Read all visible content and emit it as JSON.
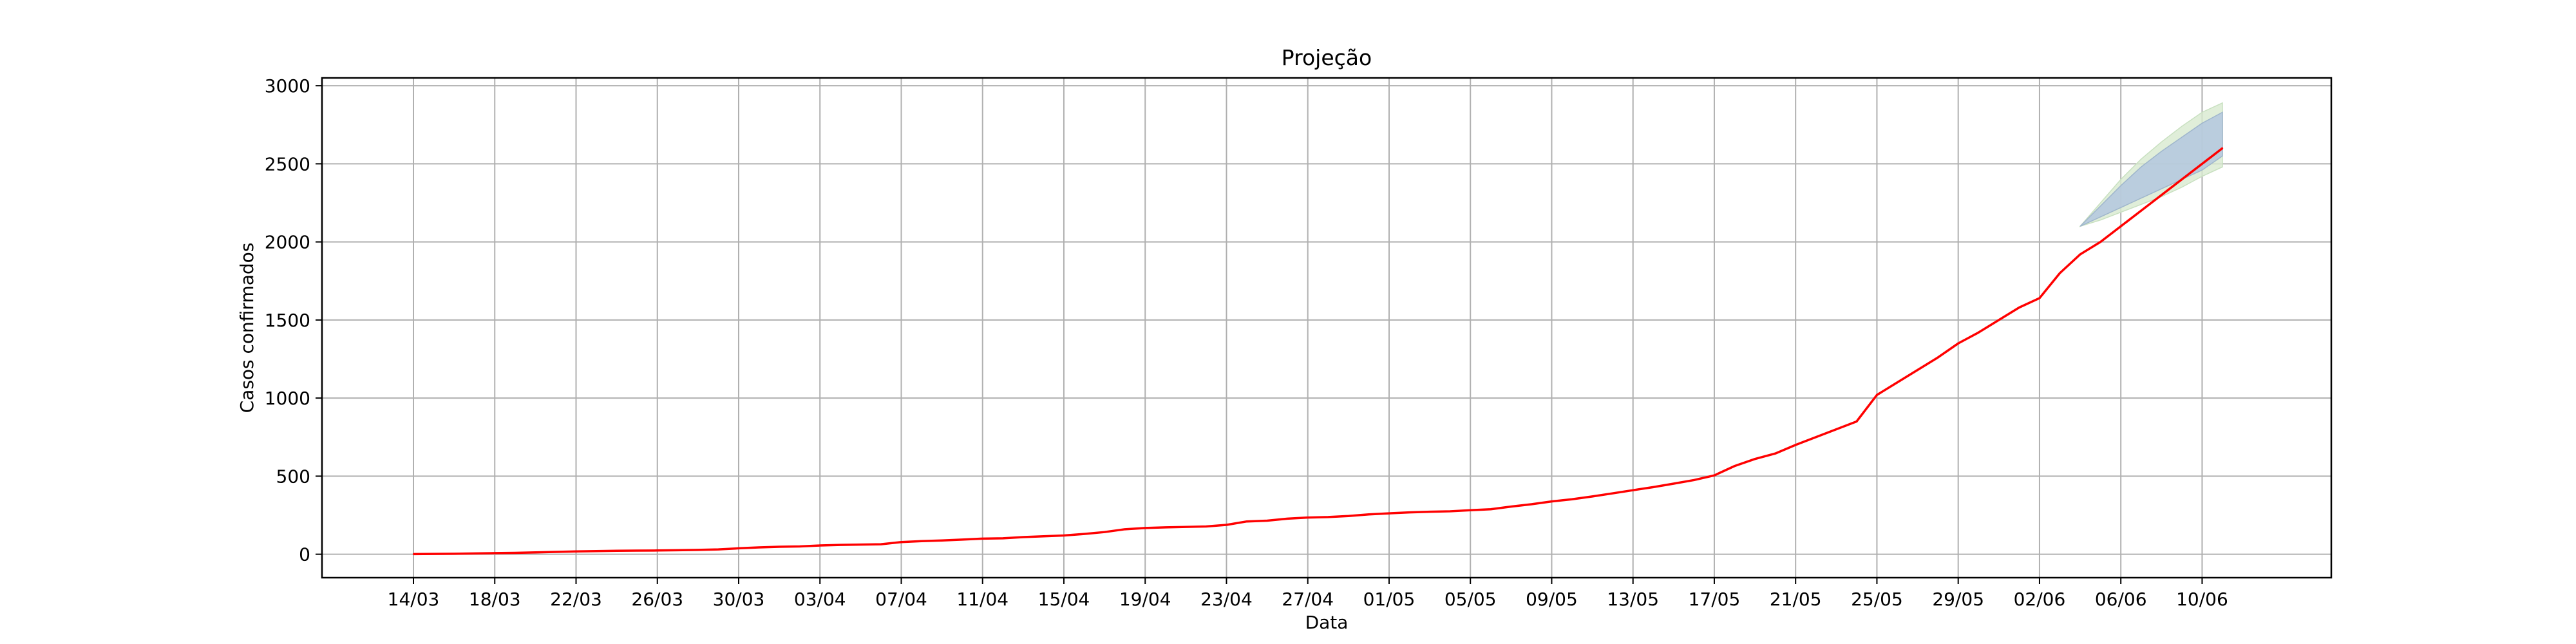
{
  "chart_data": {
    "type": "line",
    "title": "Projeção",
    "xlabel": "Data",
    "ylabel": "Casos confirmados",
    "x_tick_labels": [
      "14/03",
      "18/03",
      "22/03",
      "26/03",
      "30/03",
      "03/04",
      "07/04",
      "11/04",
      "15/04",
      "19/04",
      "23/04",
      "27/04",
      "01/05",
      "05/05",
      "09/05",
      "13/05",
      "17/05",
      "21/05",
      "25/05",
      "29/05",
      "02/06",
      "06/06",
      "10/06"
    ],
    "y_ticks": [
      0,
      500,
      1000,
      1500,
      2000,
      2500,
      3000
    ],
    "ylim": [
      -150,
      3050
    ],
    "grid": true,
    "series": [
      {
        "color": "#ff0000",
        "x": [
          "14/03",
          "15/03",
          "16/03",
          "17/03",
          "18/03",
          "19/03",
          "20/03",
          "21/03",
          "22/03",
          "23/03",
          "24/03",
          "25/03",
          "26/03",
          "27/03",
          "28/03",
          "29/03",
          "30/03",
          "31/03",
          "01/04",
          "02/04",
          "03/04",
          "04/04",
          "05/04",
          "06/04",
          "07/04",
          "08/04",
          "09/04",
          "10/04",
          "11/04",
          "12/04",
          "13/04",
          "14/04",
          "15/04",
          "16/04",
          "17/04",
          "18/04",
          "19/04",
          "20/04",
          "21/04",
          "22/04",
          "23/04",
          "24/04",
          "25/04",
          "26/04",
          "27/04",
          "28/04",
          "29/04",
          "30/04",
          "01/05",
          "02/05",
          "03/05",
          "04/05",
          "05/05",
          "06/05",
          "07/05",
          "08/05",
          "09/05",
          "10/05",
          "11/05",
          "12/05",
          "13/05",
          "14/05",
          "15/05",
          "16/05",
          "17/05",
          "18/05",
          "19/05",
          "20/05",
          "21/05",
          "22/05",
          "23/05",
          "24/05",
          "25/05",
          "26/05",
          "27/05",
          "28/05",
          "29/05",
          "30/05",
          "31/05",
          "01/06",
          "02/06",
          "03/06",
          "04/06",
          "05/06",
          "06/06",
          "07/06",
          "08/06",
          "09/06",
          "10/06",
          "11/06"
        ],
        "y": [
          1,
          2,
          3,
          5,
          7,
          9,
          12,
          15,
          18,
          20,
          22,
          23,
          24,
          26,
          28,
          31,
          38,
          44,
          48,
          50,
          56,
          60,
          62,
          64,
          78,
          84,
          88,
          94,
          100,
          102,
          110,
          115,
          120,
          130,
          142,
          160,
          168,
          172,
          175,
          178,
          188,
          210,
          215,
          228,
          235,
          238,
          245,
          255,
          262,
          268,
          272,
          275,
          282,
          288,
          305,
          320,
          338,
          352,
          370,
          390,
          410,
          430,
          452,
          475,
          505,
          565,
          610,
          645,
          700,
          750,
          800,
          850,
          1020,
          1100,
          1180,
          1260,
          1350,
          1420,
          1500,
          1580,
          1640,
          1800,
          1920,
          2000,
          2100,
          2200,
          2300,
          2400,
          2500,
          2600
        ]
      }
    ],
    "projection_band": {
      "x": [
        "04/06",
        "05/06",
        "06/06",
        "07/06",
        "08/06",
        "09/06",
        "10/06",
        "11/06"
      ],
      "inner_lower": [
        2100,
        2160,
        2220,
        2280,
        2340,
        2400,
        2460,
        2550
      ],
      "inner_upper": [
        2100,
        2230,
        2360,
        2480,
        2580,
        2670,
        2760,
        2830
      ],
      "outer_lower": [
        2100,
        2140,
        2190,
        2240,
        2290,
        2350,
        2420,
        2480
      ],
      "outer_upper": [
        2100,
        2250,
        2400,
        2530,
        2640,
        2740,
        2830,
        2890
      ],
      "inner_color": "#b0c4de",
      "outer_color": "#d8ead0"
    }
  }
}
